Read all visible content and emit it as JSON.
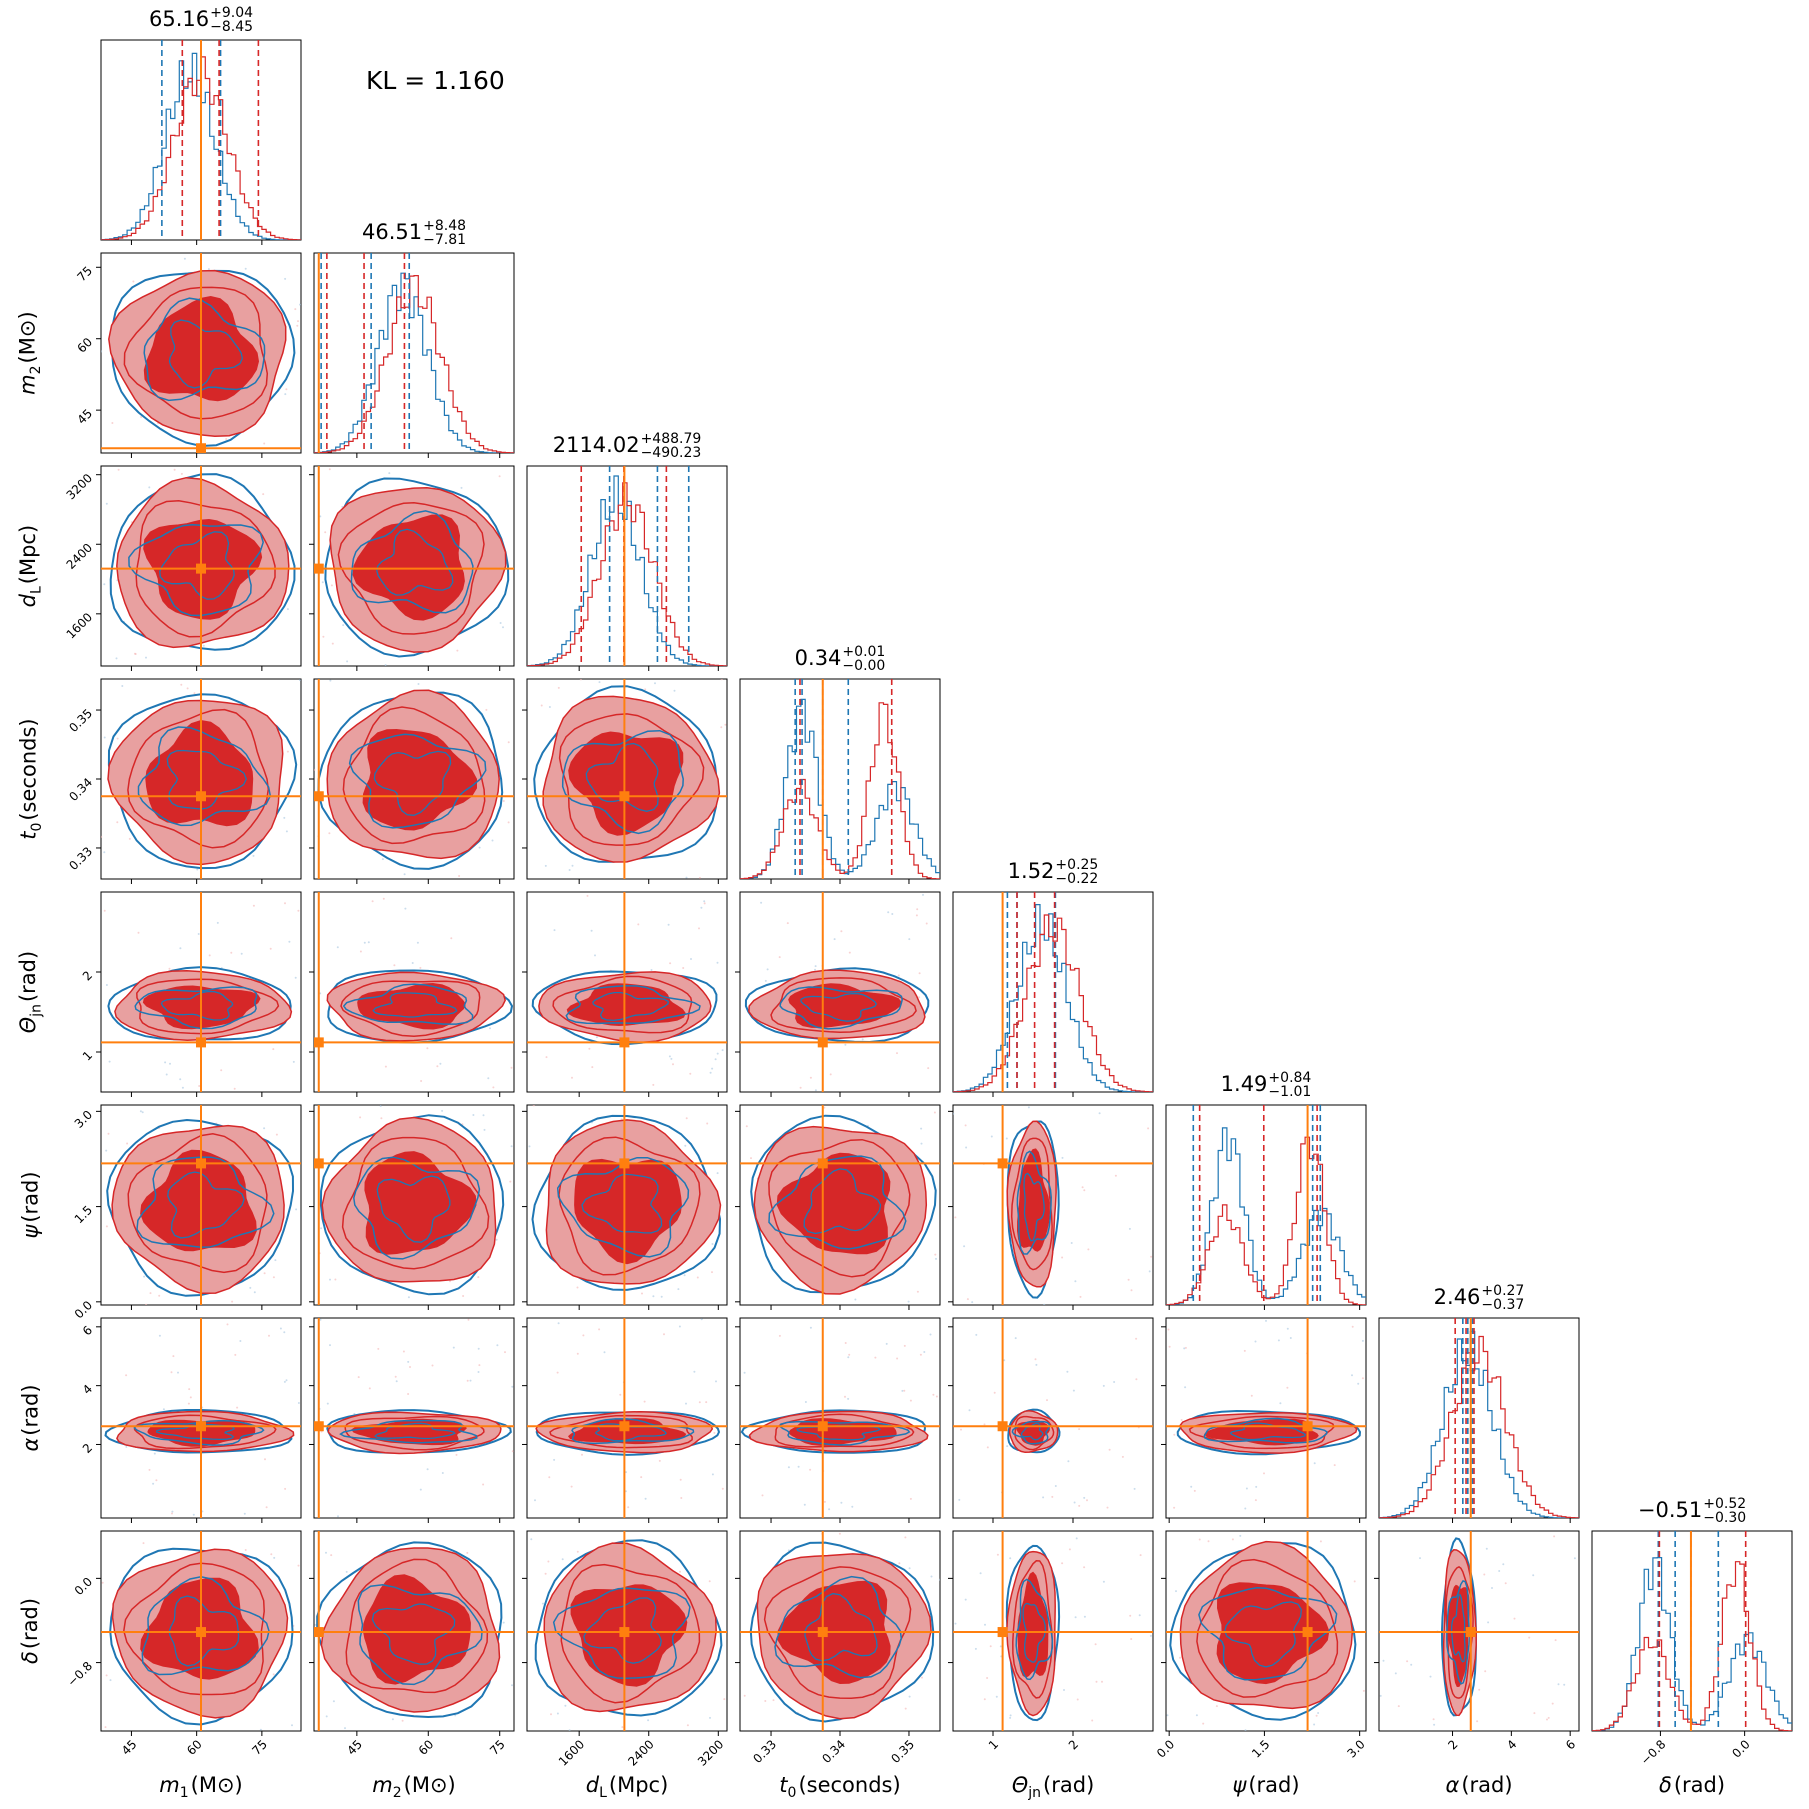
{
  "metric": {
    "label": "KL =",
    "value": "1.160"
  },
  "params": [
    {
      "sym": "m",
      "sub": "1",
      "unit": "(M⊙)",
      "median": "65.16",
      "plus": "+9.04",
      "minus": "−8.45",
      "range": [
        38,
        84
      ],
      "ticks": [
        45,
        60,
        75
      ],
      "tick_labels": [
        "45",
        "60",
        "75"
      ],
      "truth": 61.0,
      "q_red": [
        56.7,
        65.16,
        74.2
      ],
      "q_blue": [
        52.0,
        61.0,
        65.5
      ]
    },
    {
      "sym": "m",
      "sub": "2",
      "unit": "(M⊙)",
      "median": "46.51",
      "plus": "+8.48",
      "minus": "−7.81",
      "range": [
        36,
        78
      ],
      "ticks": [
        45,
        60,
        75
      ],
      "tick_labels": [
        "45",
        "60",
        "75"
      ],
      "truth": 37.0,
      "q_red": [
        38.7,
        46.51,
        54.99
      ],
      "q_blue": [
        37.5,
        48.0,
        56.0
      ]
    },
    {
      "sym": "d",
      "sub": "L",
      "unit": "(Mpc)",
      "median": "2114.02",
      "plus": "+488.79",
      "minus": "−490.23",
      "range": [
        1000,
        3300
      ],
      "ticks": [
        1600,
        2400,
        3200
      ],
      "tick_labels": [
        "1600",
        "2400",
        "3200"
      ],
      "truth": 2120.0,
      "q_red": [
        1623.8,
        2114.02,
        2602.8
      ],
      "q_blue": [
        1950.0,
        2500.0,
        2860.0
      ]
    },
    {
      "sym": "t",
      "sub": "0",
      "unit": "(seconds)",
      "median": "0.34",
      "plus": "+0.01",
      "minus": "−0.00",
      "range": [
        0.3255,
        0.3545
      ],
      "ticks": [
        0.33,
        0.34,
        0.35
      ],
      "tick_labels": [
        "0.33",
        "0.34",
        "0.35"
      ],
      "truth": 0.3375,
      "q_red": [
        0.3342,
        0.3375,
        0.3475
      ],
      "q_blue": [
        0.3335,
        0.3345,
        0.3412
      ]
    },
    {
      "sym": "Θ",
      "sub": "jn",
      "unit": "(rad)",
      "median": "1.52",
      "plus": "+0.25",
      "minus": "−0.22",
      "range": [
        0.5,
        3.0
      ],
      "ticks": [
        1,
        2
      ],
      "tick_labels": [
        "1",
        "2"
      ],
      "truth": 1.12,
      "q_red": [
        1.3,
        1.52,
        1.77
      ],
      "q_blue": [
        1.18,
        1.3,
        1.78
      ]
    },
    {
      "sym": "ψ",
      "sub": "",
      "unit": "(rad)",
      "median": "1.49",
      "plus": "+0.84",
      "minus": "−1.01",
      "range": [
        -0.05,
        3.1
      ],
      "ticks": [
        0.0,
        1.5,
        3.0
      ],
      "tick_labels": [
        "0.0",
        "1.5",
        "3.0"
      ],
      "truth": 2.18,
      "q_red": [
        0.48,
        1.49,
        2.33
      ],
      "q_blue": [
        0.38,
        2.26,
        2.38
      ]
    },
    {
      "sym": "α",
      "sub": "",
      "unit": "(rad)",
      "median": "2.46",
      "plus": "+0.27",
      "minus": "−0.37",
      "range": [
        -0.5,
        6.3
      ],
      "ticks": [
        2,
        4,
        6
      ],
      "tick_labels": [
        "2",
        "4",
        "6"
      ],
      "truth": 2.62,
      "q_red": [
        2.09,
        2.46,
        2.73
      ],
      "q_blue": [
        2.35,
        2.52,
        2.68
      ]
    },
    {
      "sym": "δ",
      "sub": "",
      "unit": "(rad)",
      "median": "−0.51",
      "plus": "+0.52",
      "minus": "−0.30",
      "range": [
        -1.45,
        0.45
      ],
      "ticks": [
        -0.8,
        0.0
      ],
      "tick_labels": [
        "−0.8",
        "0.0"
      ],
      "truth": -0.51,
      "q_red": [
        -0.81,
        -0.51,
        0.01
      ],
      "q_blue": [
        -0.82,
        -0.66,
        -0.25
      ]
    }
  ],
  "colors": {
    "red": "#d62728",
    "red_fill": "#e8a0a0",
    "blue": "#1f77b4",
    "truth": "#ff7f0e"
  }
}
